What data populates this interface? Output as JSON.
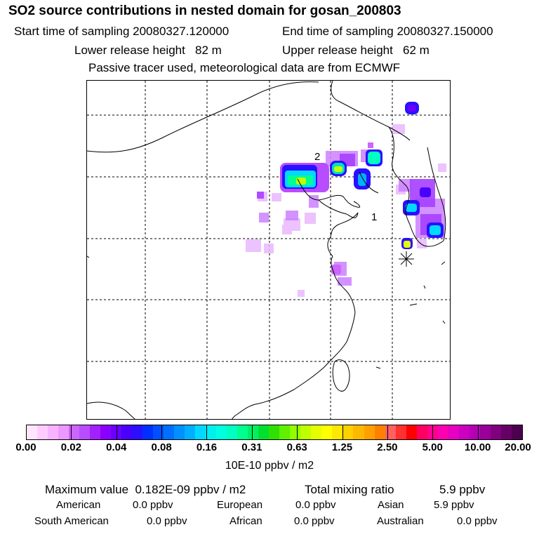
{
  "header": {
    "title": "SO2 source contributions in nested domain for gosan_200803",
    "start_label": "Start time of sampling 20080327.120000",
    "end_label": "End time of sampling 20080327.150000",
    "lower_label": "Lower release height   82 m",
    "upper_label": "Upper release height   62 m",
    "note": "Passive tracer used, meteorological data are from ECMWF"
  },
  "map": {
    "labels": {
      "one": "1",
      "two": "2"
    },
    "marker": "asterisk-station-marker"
  },
  "colorbar": {
    "ticks": [
      "0.00",
      "0.02",
      "0.04",
      "0.08",
      "0.16",
      "0.31",
      "0.63",
      "1.25",
      "2.50",
      "5.00",
      "10.00",
      "20.00"
    ],
    "colors": [
      "#ffe6ff",
      "#ffccff",
      "#f7b3ff",
      "#eb99ff",
      "#cc66ff",
      "#b84dff",
      "#a320ff",
      "#8a00ff",
      "#6a00ff",
      "#4a00ff",
      "#2a10ff",
      "#0030ff",
      "#0050ff",
      "#0070ff",
      "#0090ff",
      "#00b0ff",
      "#00d8ff",
      "#00f0f0",
      "#00ffe0",
      "#00ffc0",
      "#00ff90",
      "#00f060",
      "#00e030",
      "#30e000",
      "#60f000",
      "#90ff00",
      "#c0ff00",
      "#e6ff00",
      "#ffff00",
      "#ffe800",
      "#ffd000",
      "#ffb800",
      "#ffa000",
      "#ff8000",
      "#ff6060",
      "#ff3030",
      "#ff0000",
      "#ff0060",
      "#ff0090",
      "#ff00b0",
      "#e600c0",
      "#cc00c0",
      "#b300b3",
      "#990099",
      "#800080",
      "#660066",
      "#4d004d"
    ],
    "unit": "10E-10 ppbv / m2"
  },
  "stats": {
    "max_label": "Maximum value  0.182E-09 ppbv / m2",
    "total_label": "Total mixing ratio",
    "total_value": "5.9 ppbv",
    "regions": [
      {
        "name": "American",
        "value": "0.0 ppbv"
      },
      {
        "name": "European",
        "value": "0.0 ppbv"
      },
      {
        "name": "Asian",
        "value": "5.9 ppbv"
      },
      {
        "name": "South American",
        "value": "0.0 ppbv"
      },
      {
        "name": "African",
        "value": "0.0 ppbv"
      },
      {
        "name": "Australian",
        "value": "0.0 ppbv"
      }
    ]
  }
}
